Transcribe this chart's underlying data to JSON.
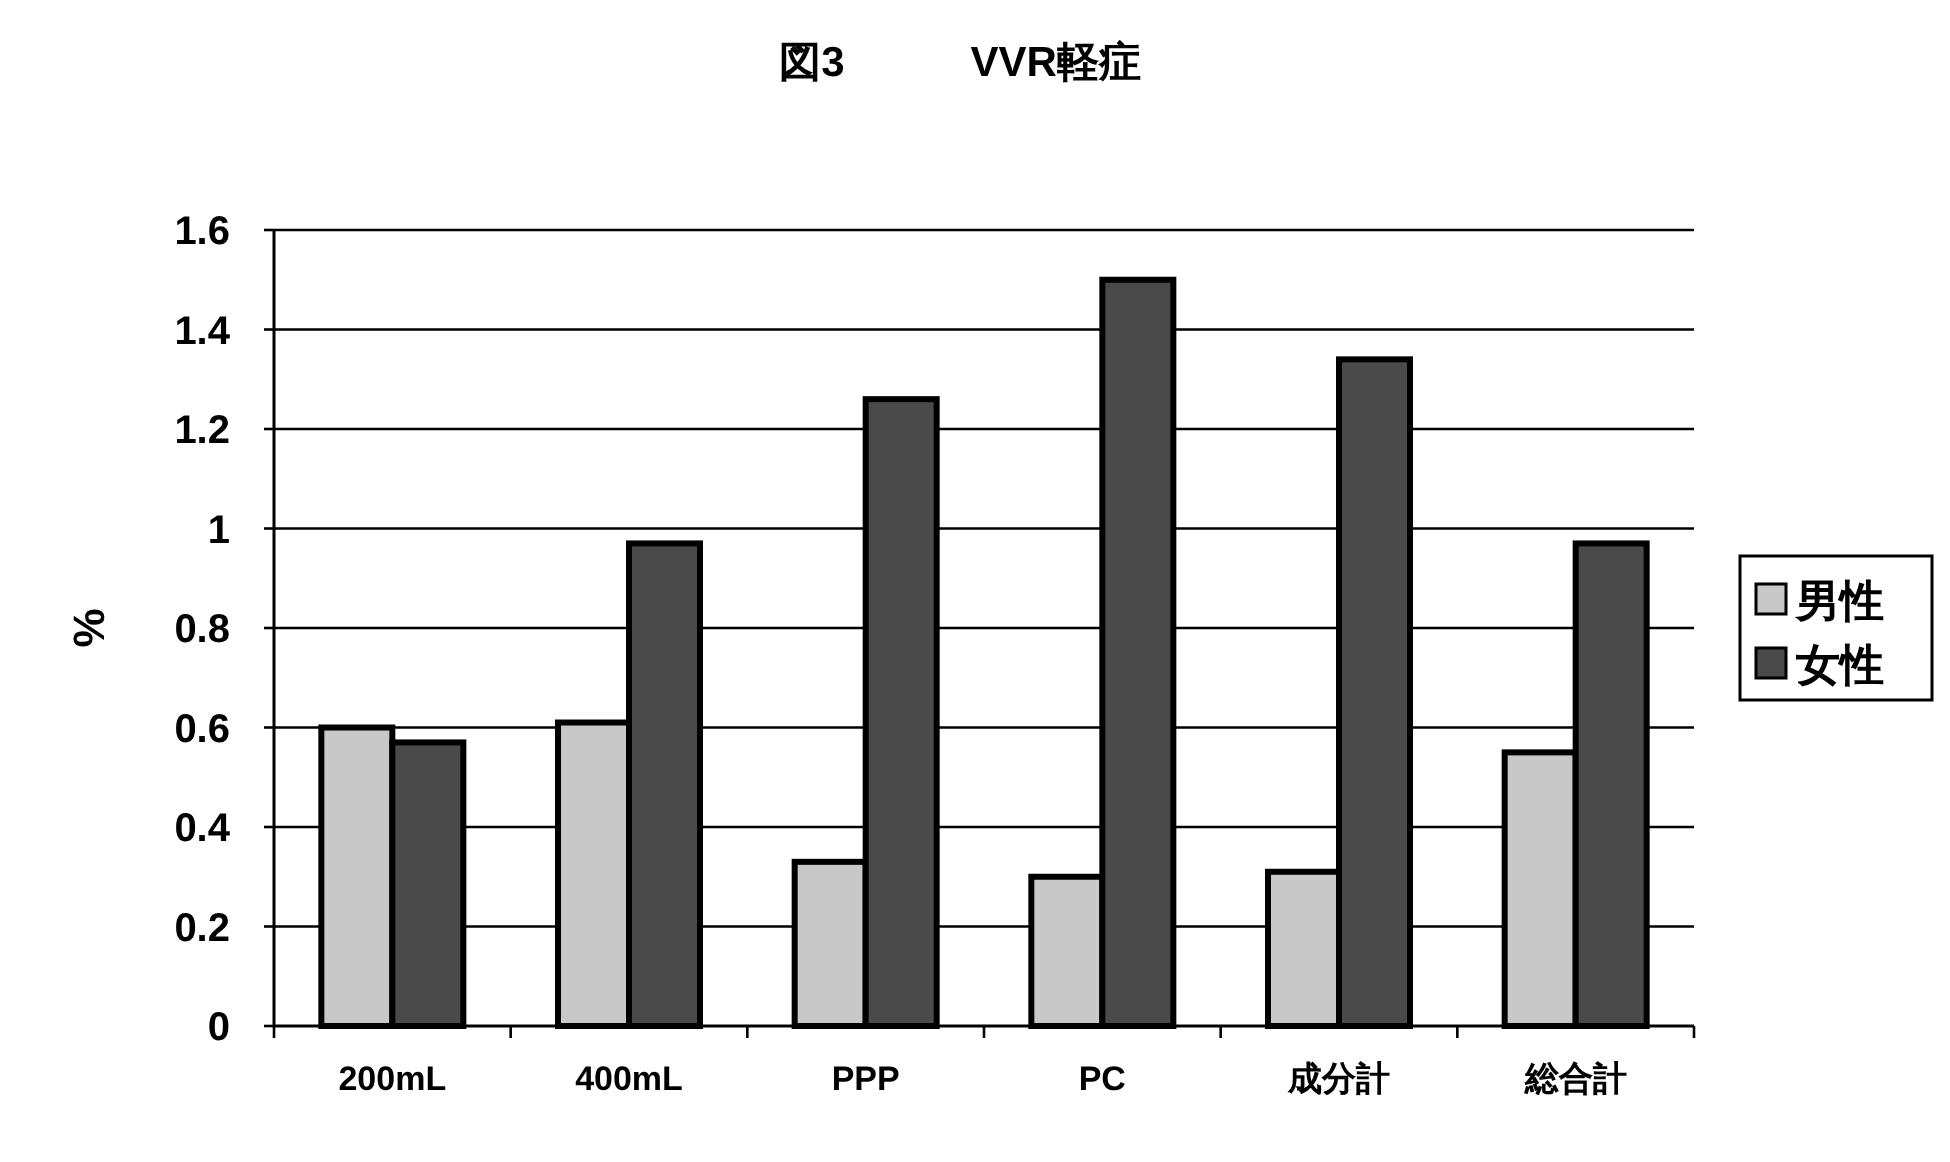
{
  "chart_data": {
    "type": "bar",
    "title": "図3　　　VVR軽症",
    "ylabel": "%",
    "categories": [
      "200mL",
      "400mL",
      "PPP",
      "PC",
      "成分計",
      "総合計"
    ],
    "series": [
      {
        "name": "男性",
        "color": "#c8c8c8",
        "values": [
          0.6,
          0.61,
          0.33,
          0.3,
          0.31,
          0.55
        ]
      },
      {
        "name": "女性",
        "color": "#4a4a4a",
        "values": [
          0.57,
          0.97,
          1.26,
          1.5,
          1.34,
          0.97
        ]
      }
    ],
    "ylim": [
      0,
      1.6
    ],
    "yticks": [
      0,
      0.2,
      0.4,
      0.6,
      0.8,
      1,
      1.2,
      1.4,
      1.6
    ],
    "grid": "y",
    "legend": "right"
  }
}
